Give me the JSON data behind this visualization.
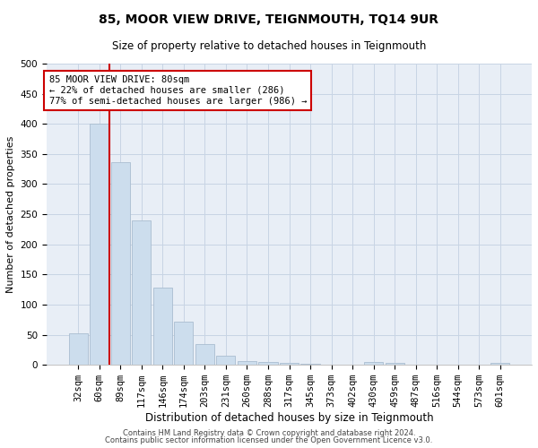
{
  "title": "85, MOOR VIEW DRIVE, TEIGNMOUTH, TQ14 9UR",
  "subtitle": "Size of property relative to detached houses in Teignmouth",
  "xlabel": "Distribution of detached houses by size in Teignmouth",
  "ylabel": "Number of detached properties",
  "footer1": "Contains HM Land Registry data © Crown copyright and database right 2024.",
  "footer2": "Contains public sector information licensed under the Open Government Licence v3.0.",
  "bar_color": "#ccdded",
  "bar_edge_color": "#aabdd0",
  "grid_color": "#c8d4e4",
  "bg_color": "#e8eef6",
  "categories": [
    "32sqm",
    "60sqm",
    "89sqm",
    "117sqm",
    "146sqm",
    "174sqm",
    "203sqm",
    "231sqm",
    "260sqm",
    "288sqm",
    "317sqm",
    "345sqm",
    "373sqm",
    "402sqm",
    "430sqm",
    "459sqm",
    "487sqm",
    "516sqm",
    "544sqm",
    "573sqm",
    "601sqm"
  ],
  "values": [
    52,
    400,
    337,
    240,
    128,
    72,
    35,
    15,
    7,
    5,
    3,
    2,
    1,
    0,
    5,
    3,
    1,
    0,
    0,
    0,
    3
  ],
  "ylim": [
    0,
    500
  ],
  "yticks": [
    0,
    50,
    100,
    150,
    200,
    250,
    300,
    350,
    400,
    450,
    500
  ],
  "property_line_x": 1.5,
  "property_line_color": "#cc0000",
  "annotation_text": "85 MOOR VIEW DRIVE: 80sqm\n← 22% of detached houses are smaller (286)\n77% of semi-detached houses are larger (986) →",
  "annotation_box_color": "#ffffff",
  "annotation_box_edge_color": "#cc0000",
  "title_fontsize": 10,
  "subtitle_fontsize": 8.5,
  "ylabel_fontsize": 8,
  "xlabel_fontsize": 8.5,
  "tick_fontsize": 7.5,
  "annotation_fontsize": 7.5,
  "footer_fontsize": 6
}
